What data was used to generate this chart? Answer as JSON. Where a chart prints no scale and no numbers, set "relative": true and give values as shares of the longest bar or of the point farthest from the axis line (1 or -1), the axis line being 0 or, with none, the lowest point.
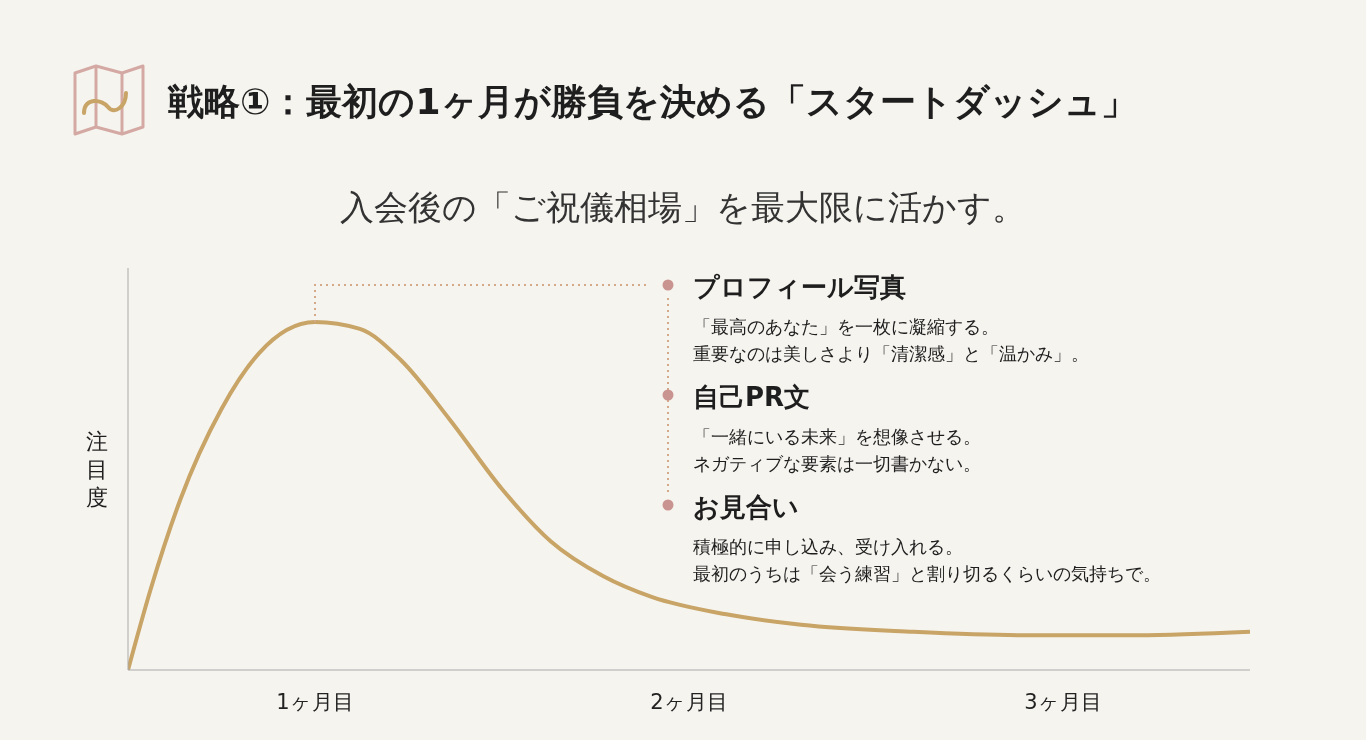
{
  "chart_data": {
    "type": "line",
    "title": "戦略①：最初の1ヶ月が勝負を決める「スタートダッシュ」",
    "subtitle": "入会後の「ご祝儀相場」を最大限に活かす。",
    "ylabel": "注目度",
    "relative": true,
    "x": [
      0,
      0.06,
      0.14,
      0.25,
      0.35,
      0.5,
      0.62,
      0.73,
      0.86,
      1.0,
      1.13,
      1.27,
      1.4,
      1.6,
      1.8,
      2.1,
      2.4,
      2.7,
      3.0
    ],
    "series": [
      {
        "color": "#c8a466",
        "values": [
          0,
          0.23,
          0.49,
          0.75,
          0.91,
          1,
          0.98,
          0.89,
          0.72,
          0.52,
          0.37,
          0.27,
          0.21,
          0.16,
          0.13,
          0.11,
          0.1,
          0.1,
          0.11
        ]
      }
    ],
    "xlim": [
      0,
      3
    ],
    "xticks": [
      {
        "value": 0.5,
        "label": "1ヶ月目"
      },
      {
        "value": 1.5,
        "label": "2ヶ月目"
      },
      {
        "value": 2.5,
        "label": "3ヶ月目"
      }
    ],
    "grid": false,
    "legend": false,
    "marker": "none",
    "line_style": "solid",
    "annotations": [
      "プロフィール写真",
      "「最高のあなた」を一枚に凝縮する。",
      "重要なのは美しさより「清潔感」と「温かみ」。",
      "自己PR文",
      "「一緒にいる未来」を想像させる。",
      "ネガティブな要素は一切書かない。",
      "お見合い",
      "積極的に申し込み、受け入れる。",
      "最初のうちは「会う練習」と割り切るくらいの気持ちで。"
    ]
  }
}
